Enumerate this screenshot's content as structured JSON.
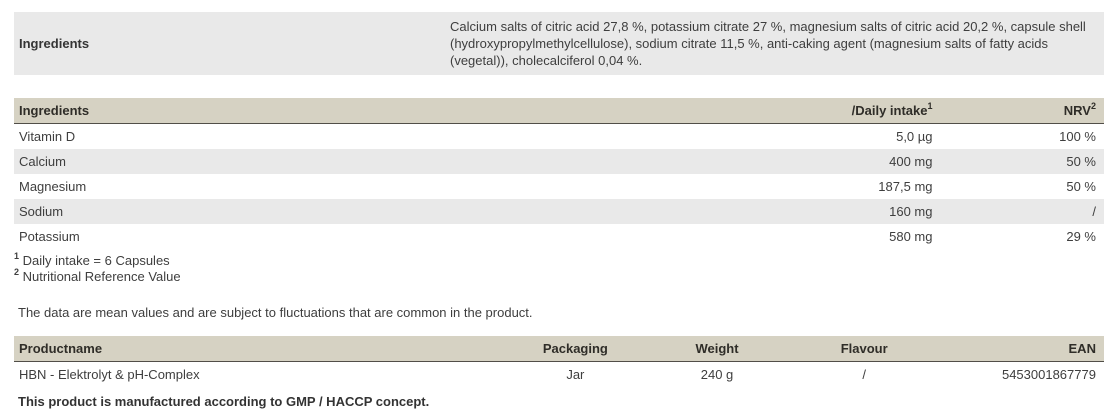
{
  "colors": {
    "top_section_bg": "#e9e9e9",
    "table_header_bg": "#d6d2c3",
    "row_alt_bg": "#e9e9e9",
    "header_border": "#514e48",
    "text": "#3e3e3e"
  },
  "ingredients_section": {
    "label": "Ingredients",
    "text": "Calcium salts of citric acid 27,8 %, potassium citrate 27 %, magnesium salts of citric acid 20,2 %, capsule shell (hydroxypropylmethylcellulose), sodium citrate 11,5 %, anti-caking agent (magnesium salts of fatty acids (vegetal)), cholecalciferol 0,04 %."
  },
  "nutrition_table": {
    "headers": {
      "ingredient": "Ingredients",
      "daily_intake": "/Daily intake",
      "daily_intake_sup": "1",
      "nrv": "NRV",
      "nrv_sup": "2"
    },
    "rows": [
      {
        "name": "Vitamin D",
        "daily_intake": "5,0 µg",
        "nrv": "100 %"
      },
      {
        "name": "Calcium",
        "daily_intake": "400 mg",
        "nrv": "50 %"
      },
      {
        "name": "Magnesium",
        "daily_intake": "187,5 mg",
        "nrv": "50 %"
      },
      {
        "name": "Sodium",
        "daily_intake": "160 mg",
        "nrv": "/"
      },
      {
        "name": "Potassium",
        "daily_intake": "580 mg",
        "nrv": "29 %"
      }
    ]
  },
  "footnotes": [
    {
      "sup": "1",
      "text": " Daily intake = 6 Capsules"
    },
    {
      "sup": "2",
      "text": " Nutritional Reference Value"
    }
  ],
  "disclaimer": "The data are mean values and are subject to fluctuations that are common in the product.",
  "product_table": {
    "headers": {
      "productname": "Productname",
      "packaging": "Packaging",
      "weight": "Weight",
      "flavour": "Flavour",
      "ean": "EAN"
    },
    "row": {
      "productname": "HBN - Elektrolyt & pH-Complex",
      "packaging": "Jar",
      "weight": "240 g",
      "flavour": "/",
      "ean": "5453001867779"
    }
  },
  "manufacturing_note": "This product is manufactured according to GMP / HACCP concept."
}
